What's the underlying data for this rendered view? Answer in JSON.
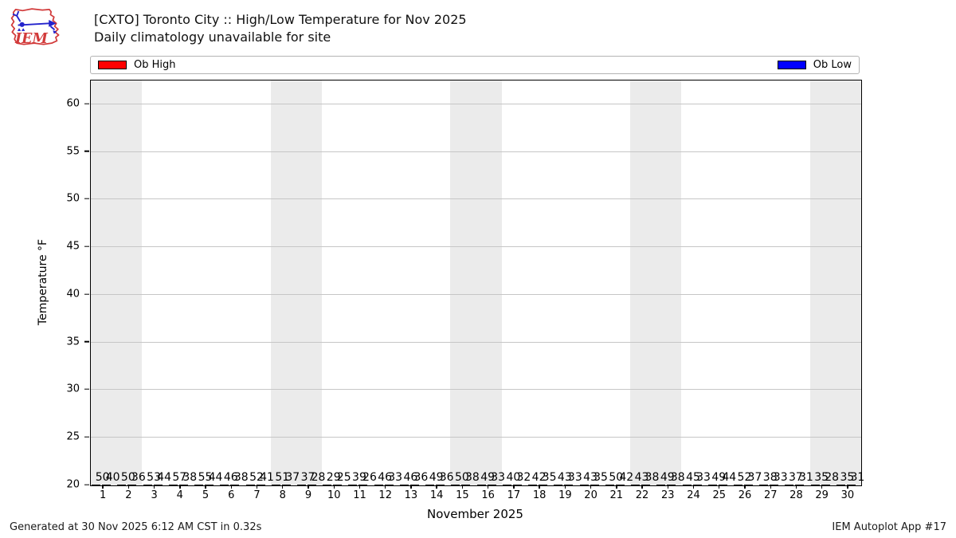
{
  "header": {
    "logo_text": "IEM"
  },
  "footer": {
    "left": "Generated at 30 Nov 2025 6:12 AM CST in 0.32s",
    "right": "IEM Autoplot App #17"
  },
  "chart_data": {
    "type": "bar",
    "title": "[CXTO] Toronto City :: High/Low Temperature for Nov 2025",
    "subtitle": "Daily climatology unavailable for site",
    "xlabel": "November 2025",
    "ylabel": "Temperature °F",
    "ylim": [
      20,
      62.5
    ],
    "yticks": [
      20,
      25,
      30,
      35,
      40,
      45,
      50,
      55,
      60
    ],
    "grid": "horizontal",
    "legend_position": "top",
    "categories": [
      1,
      2,
      3,
      4,
      5,
      6,
      7,
      8,
      9,
      10,
      11,
      12,
      13,
      14,
      15,
      16,
      17,
      18,
      19,
      20,
      21,
      22,
      23,
      24,
      25,
      26,
      27,
      28,
      29,
      30
    ],
    "series": [
      {
        "name": "Ob High",
        "color": "#ff0000",
        "values": [
          50,
          50,
          53,
          57,
          55,
          46,
          52,
          51,
          37,
          29,
          39,
          46,
          46,
          49,
          50,
          49,
          40,
          42,
          43,
          43,
          50,
          43,
          49,
          45,
          49,
          52,
          38,
          37,
          35,
          35
        ]
      },
      {
        "name": "Ob Low",
        "color": "#0000ff",
        "values": [
          40,
          36,
          44,
          38,
          44,
          38,
          41,
          37,
          28,
          25,
          26,
          33,
          36,
          36,
          38,
          33,
          32,
          35,
          33,
          35,
          42,
          38,
          38,
          33,
          44,
          37,
          33,
          31,
          28,
          31
        ]
      }
    ],
    "weekend_bands": [
      [
        1,
        2
      ],
      [
        8,
        9
      ],
      [
        15,
        16
      ],
      [
        22,
        23
      ],
      [
        29,
        30
      ]
    ],
    "weekend_band_color": "#ebebeb",
    "grid_color": "#c6c6c6"
  }
}
